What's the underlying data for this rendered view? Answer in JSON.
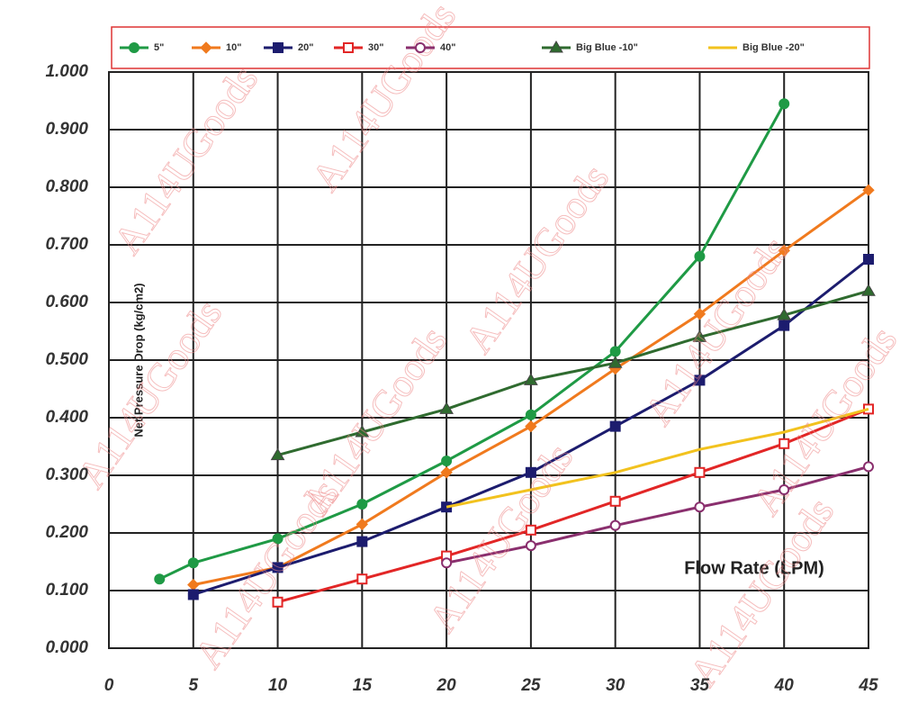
{
  "chart_data": {
    "type": "line",
    "y_label": "Net Pressure Drop (kg/cm2)",
    "x_label": "Flow Rate (LPM)",
    "watermark": "A114UGoods",
    "x": [
      3,
      5,
      10,
      15,
      20,
      25,
      30,
      35,
      40,
      45
    ],
    "xlim": [
      0,
      45
    ],
    "xticks": [
      0,
      5,
      10,
      15,
      20,
      25,
      30,
      35,
      40,
      45
    ],
    "ylim": [
      0,
      1
    ],
    "yticks": [
      {
        "value": 0,
        "label": "0.000"
      },
      {
        "value": 0.1,
        "label": "0.100"
      },
      {
        "value": 0.2,
        "label": "0.200"
      },
      {
        "value": 0.3,
        "label": "0.300"
      },
      {
        "value": 0.4,
        "label": "0.400"
      },
      {
        "value": 0.5,
        "label": "0.500"
      },
      {
        "value": 0.6,
        "label": "0.600"
      },
      {
        "value": 0.7,
        "label": "0.700"
      },
      {
        "value": 0.8,
        "label": "0.800"
      },
      {
        "value": 0.9,
        "label": "0.900"
      },
      {
        "value": 1,
        "label": "1.000"
      }
    ],
    "grid": true,
    "series": [
      {
        "name": "5\"",
        "color": "#1f9a45",
        "marker": "circle",
        "values": [
          0.12,
          0.148,
          0.19,
          0.25,
          0.325,
          0.405,
          0.515,
          0.68,
          0.945,
          null
        ]
      },
      {
        "name": "10\"",
        "color": "#f07a1e",
        "marker": "diamond",
        "values": [
          null,
          0.11,
          0.14,
          0.215,
          0.305,
          0.385,
          0.485,
          0.58,
          0.69,
          0.795
        ]
      },
      {
        "name": "20\"",
        "color": "#1c1c6e",
        "marker": "square",
        "values": [
          null,
          0.093,
          0.14,
          0.185,
          0.245,
          0.305,
          0.385,
          0.465,
          0.56,
          0.675
        ]
      },
      {
        "name": "30\"",
        "color": "#e22626",
        "marker": "square-open",
        "values": [
          null,
          null,
          0.08,
          0.12,
          0.16,
          0.205,
          0.255,
          0.305,
          0.355,
          0.415
        ]
      },
      {
        "name": "40\"",
        "color": "#8a2f6e",
        "marker": "circle-open",
        "values": [
          null,
          null,
          null,
          null,
          0.148,
          0.178,
          0.213,
          0.245,
          0.275,
          0.315
        ]
      },
      {
        "name": "Big Blue -10\"",
        "color": "#2f6b2f",
        "marker": "triangle",
        "values": [
          null,
          null,
          0.335,
          0.375,
          0.415,
          0.465,
          0.495,
          0.54,
          0.578,
          0.62
        ]
      },
      {
        "name": "Big Blue -20\"",
        "color": "#f2c21e",
        "marker": "none",
        "values": [
          null,
          null,
          null,
          null,
          0.245,
          0.275,
          0.305,
          0.345,
          0.375,
          0.415
        ]
      }
    ]
  }
}
